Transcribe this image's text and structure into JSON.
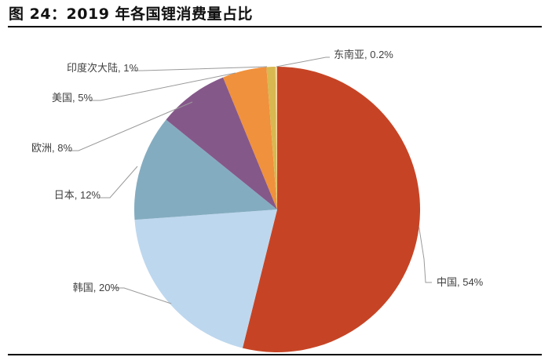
{
  "header": {
    "title": "图 24：2019 年各国锂消费量占比"
  },
  "chart_data": {
    "type": "pie",
    "title": "图 24：2019 年各国锂消费量占比",
    "start_angle_deg": 0,
    "direction": "clockwise",
    "slices": [
      {
        "label": "中国",
        "value": 54,
        "display": "中国, 54%",
        "color": "#C64425"
      },
      {
        "label": "韩国",
        "value": 20,
        "display": "韩国, 20%",
        "color": "#BDD7EE"
      },
      {
        "label": "日本",
        "value": 12,
        "display": "日本, 12%",
        "color": "#84ACC0"
      },
      {
        "label": "欧洲",
        "value": 8,
        "display": "欧洲, 8%",
        "color": "#85588A"
      },
      {
        "label": "美国",
        "value": 5,
        "display": "美国, 5%",
        "color": "#F0913D"
      },
      {
        "label": "印度次大陆",
        "value": 1,
        "display": "印度次大陆, 1%",
        "color": "#D8B850"
      },
      {
        "label": "东南亚",
        "value": 0.2,
        "display": "东南亚, 0.2%",
        "color": "#F5D3A0"
      }
    ],
    "legend": "none",
    "data_labels": "category, percentage with leader lines"
  }
}
